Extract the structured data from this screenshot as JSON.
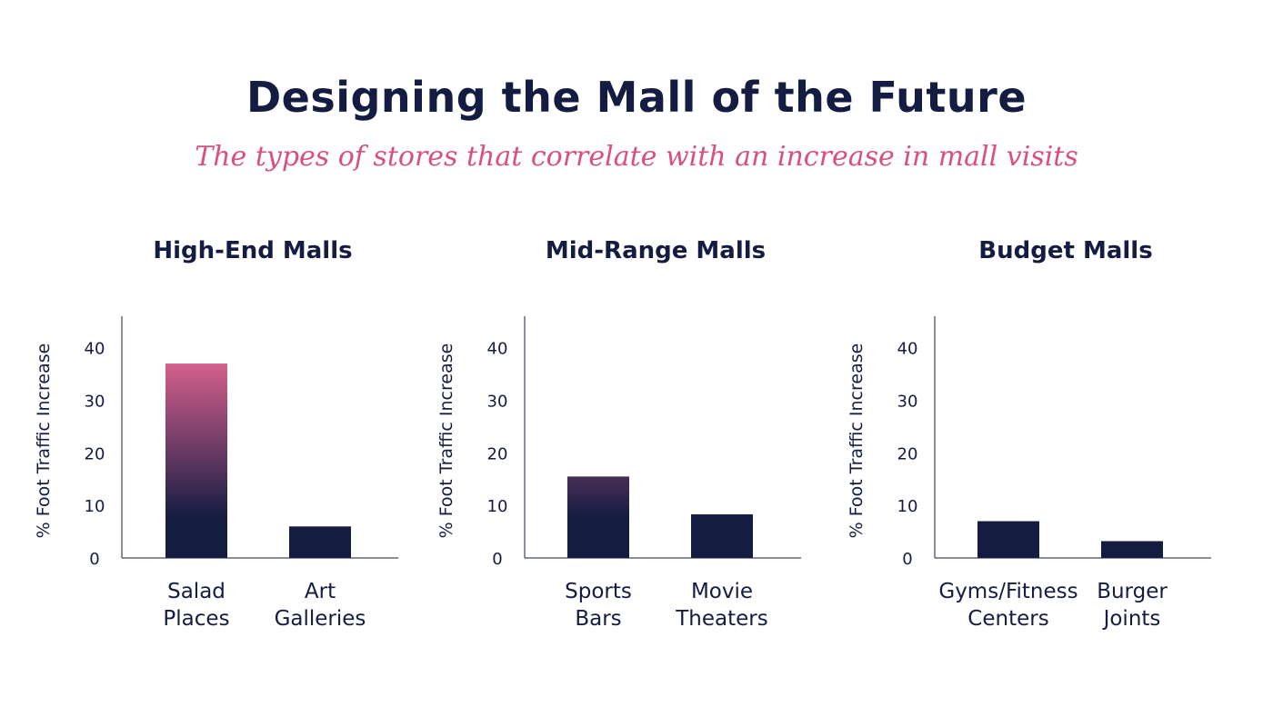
{
  "header": {
    "title": "Designing the Mall of the Future",
    "subtitle": "The types of stores that correlate with an increase in mall visits"
  },
  "colors": {
    "title": "#141c42",
    "subtitle": "#d84f80",
    "bar_base": "#141c42",
    "bar_top_highlight": "#d4608d",
    "axis": "#141c42"
  },
  "chart_data": [
    {
      "type": "bar",
      "title": "High-End Malls",
      "ylabel": "% Foot Traffic Increase",
      "ylim": [
        0,
        46
      ],
      "yticks": [
        0,
        10,
        20,
        30,
        40
      ],
      "categories": [
        [
          "Salad",
          "Places"
        ],
        [
          "Art",
          "Galleries"
        ]
      ],
      "values": [
        37,
        6
      ],
      "grid": false
    },
    {
      "type": "bar",
      "title": "Mid-Range Malls",
      "ylabel": "% Foot Traffic Increase",
      "ylim": [
        0,
        46
      ],
      "yticks": [
        0,
        10,
        20,
        30,
        40
      ],
      "categories": [
        [
          "Sports",
          "Bars"
        ],
        [
          "Movie",
          "Theaters"
        ]
      ],
      "values": [
        15.5,
        8.3
      ],
      "grid": false
    },
    {
      "type": "bar",
      "title": "Budget Malls",
      "ylabel": "% Foot Traffic Increase",
      "ylim": [
        0,
        46
      ],
      "yticks": [
        0,
        10,
        20,
        30,
        40
      ],
      "categories": [
        [
          "Gyms/Fitness",
          "Centers"
        ],
        [
          "Burger",
          "Joints"
        ]
      ],
      "values": [
        7,
        3.2
      ],
      "grid": false
    }
  ]
}
